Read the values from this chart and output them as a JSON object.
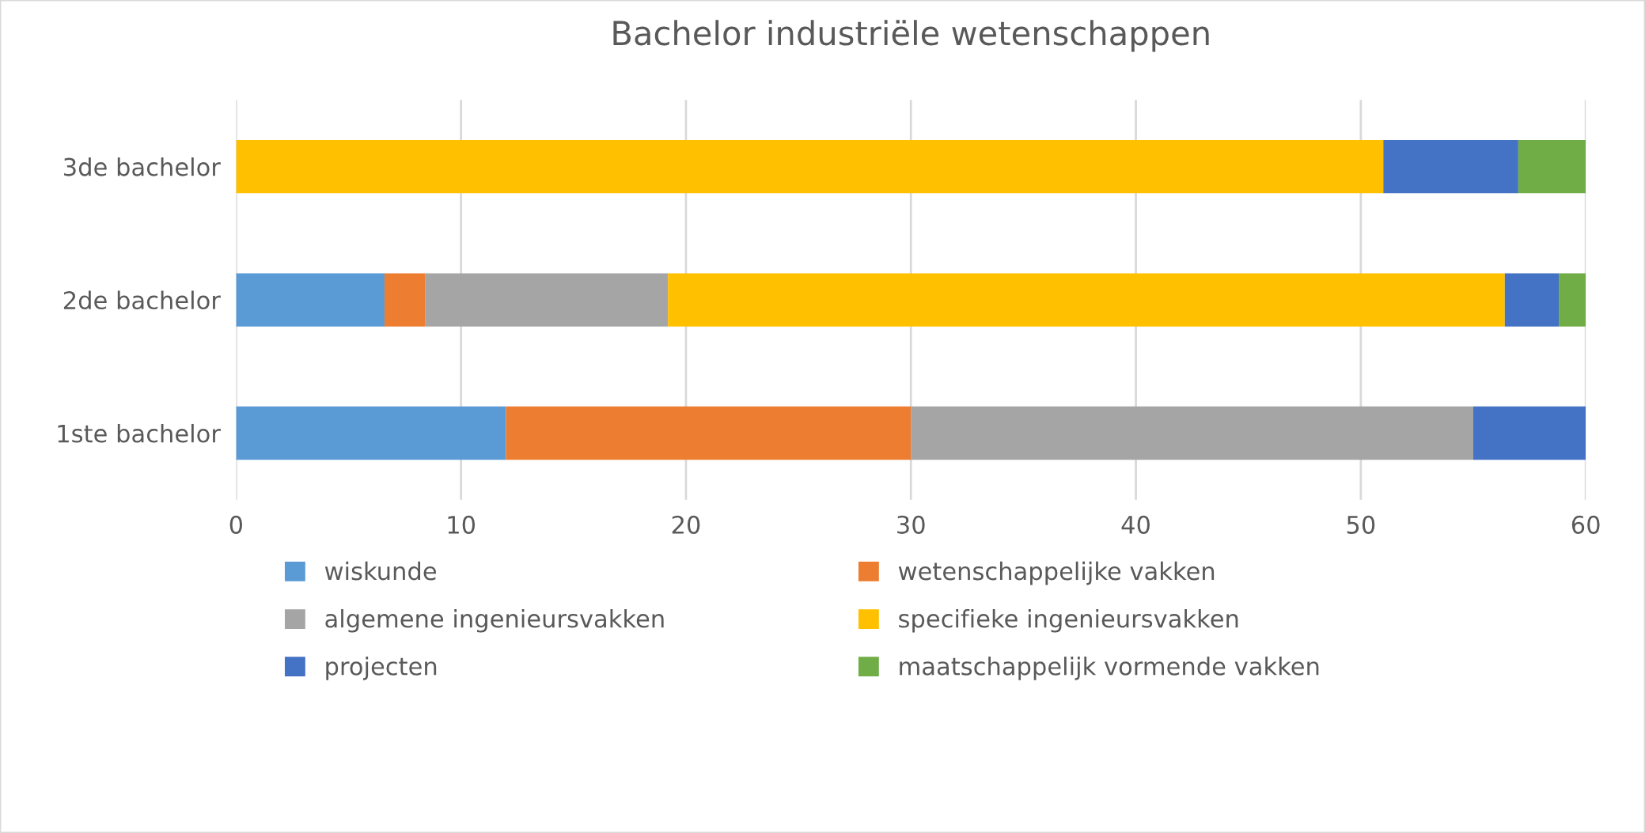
{
  "chart_data": {
    "type": "bar",
    "orientation": "horizontal",
    "stacked": true,
    "title": "Bachelor industriële wetenschappen",
    "categories": [
      "3de bachelor",
      "2de bachelor",
      "1ste bachelor"
    ],
    "series": [
      {
        "name": "wiskunde",
        "color": "#5b9bd5",
        "values": [
          0,
          6.6,
          12
        ]
      },
      {
        "name": "wetenschappelijke vakken",
        "color": "#ed7d31",
        "values": [
          0,
          1.8,
          18
        ]
      },
      {
        "name": "algemene ingenieursvakken",
        "color": "#a5a5a5",
        "values": [
          0,
          10.8,
          25
        ]
      },
      {
        "name": "specifieke ingenieursvakken",
        "color": "#ffc000",
        "values": [
          51,
          37.2,
          0
        ]
      },
      {
        "name": "projecten",
        "color": "#4472c4",
        "values": [
          6,
          2.4,
          5
        ]
      },
      {
        "name": "maatschappelijk vormende vakken",
        "color": "#70ad47",
        "values": [
          3,
          1.2,
          0
        ]
      }
    ],
    "xlim": [
      0,
      60
    ],
    "xticks": [
      0,
      10,
      20,
      30,
      40,
      50,
      60
    ],
    "grid": "x",
    "legend": "bottom"
  }
}
